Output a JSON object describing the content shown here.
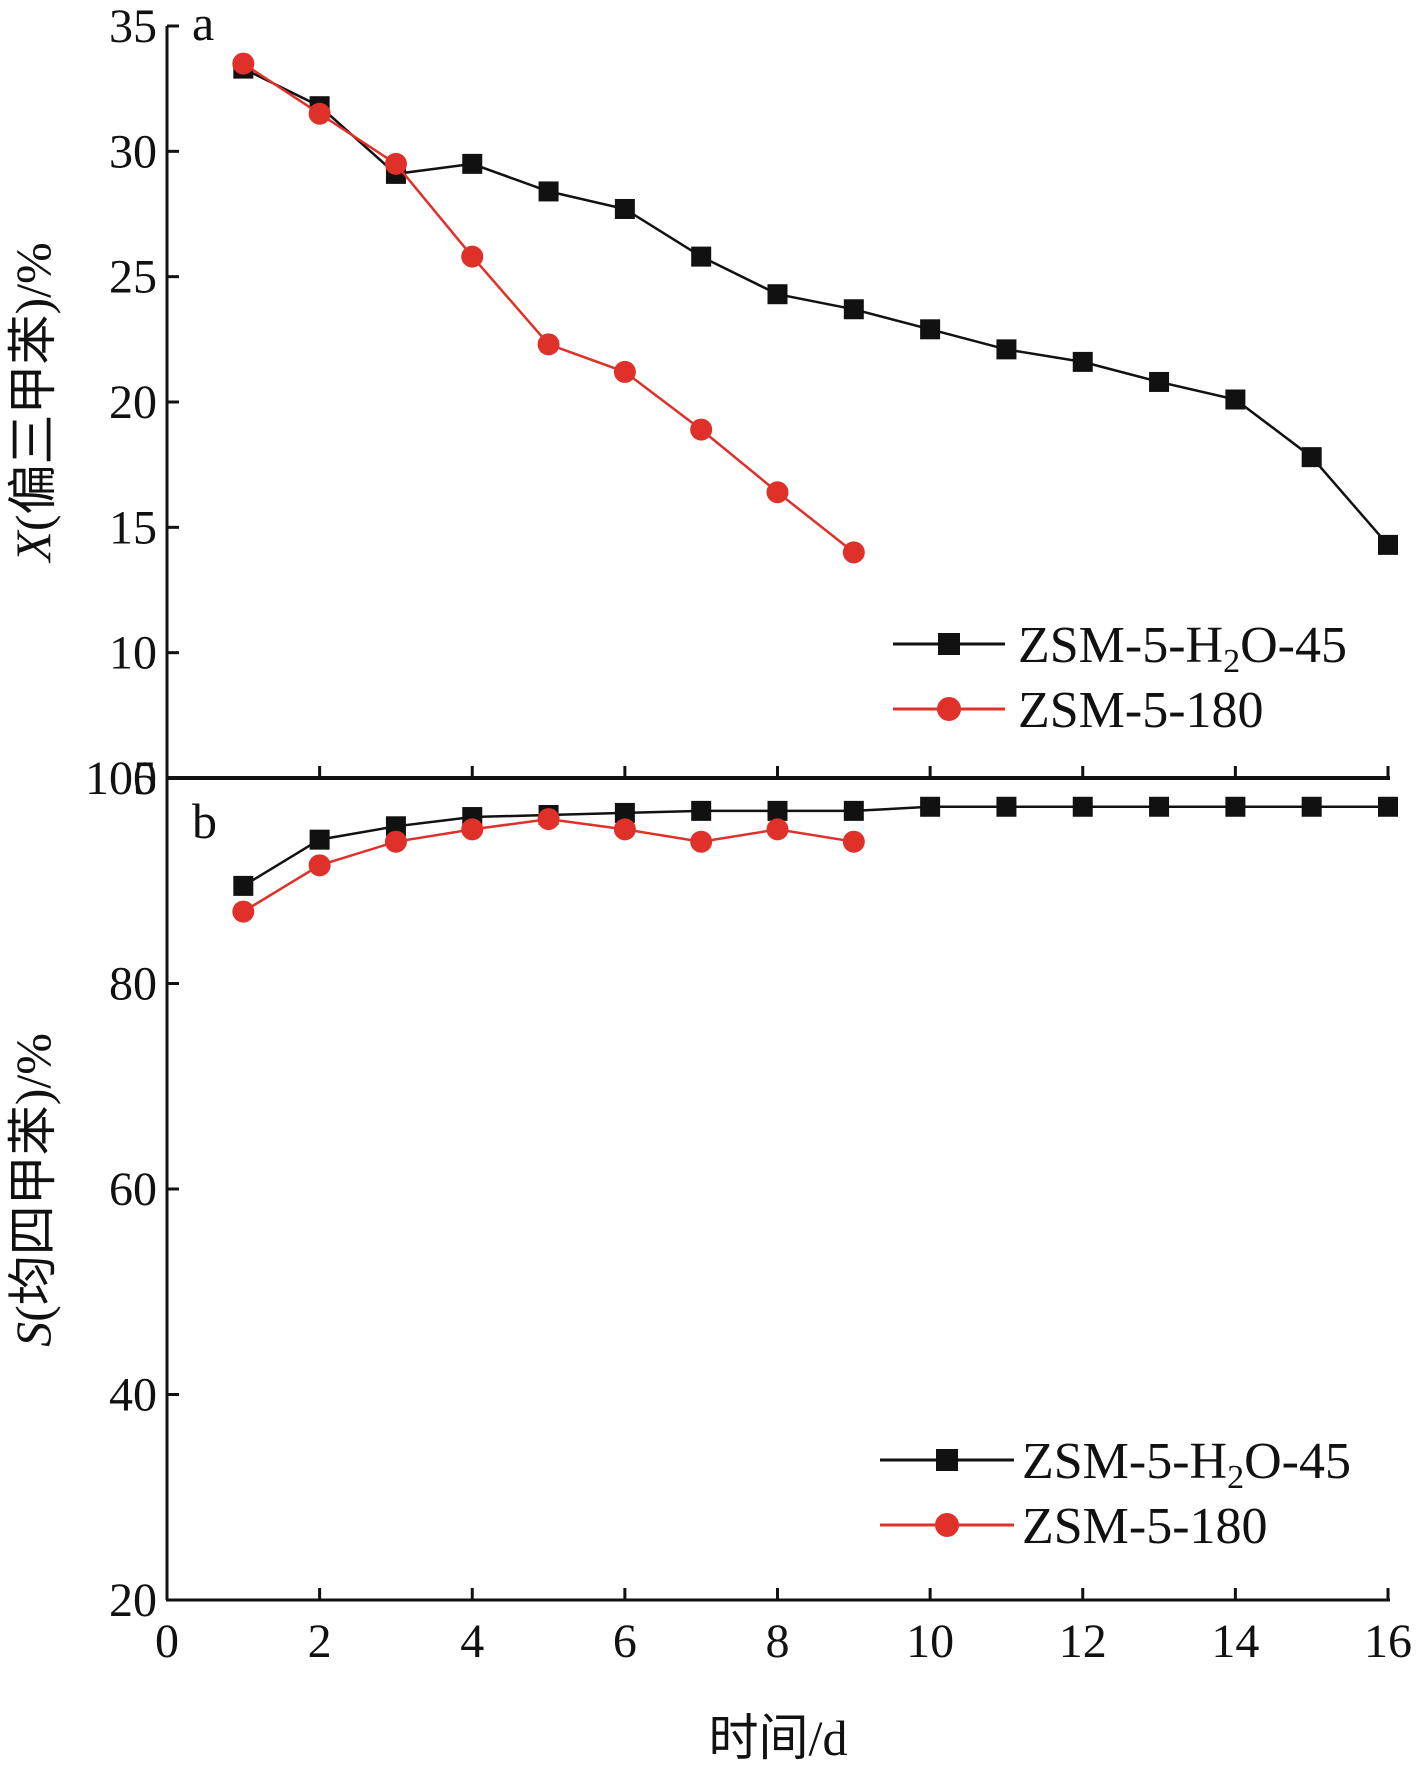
{
  "chart_data": [
    {
      "type": "line",
      "panel_label": "a",
      "ylabel_italic": "X",
      "ylabel_rest": "(偏三甲苯)/%",
      "xlim": [
        0,
        16
      ],
      "ylim": [
        5,
        35
      ],
      "yticks": [
        5,
        10,
        15,
        20,
        25,
        30,
        35
      ],
      "legend": "lower-right",
      "series": [
        {
          "name_parts": [
            "ZSM-5-H",
            "2",
            "O-45"
          ],
          "color": "#111111",
          "marker": "square",
          "x": [
            1,
            2,
            3,
            4,
            5,
            6,
            7,
            8,
            9,
            10,
            11,
            12,
            13,
            14,
            15,
            16
          ],
          "values": [
            33.3,
            31.8,
            29.1,
            29.5,
            28.4,
            27.7,
            25.8,
            24.3,
            23.7,
            22.9,
            22.1,
            21.6,
            20.8,
            20.1,
            17.8,
            14.3
          ]
        },
        {
          "name": "ZSM-5-180",
          "color": "#e0302a",
          "marker": "circle",
          "x": [
            1,
            2,
            3,
            4,
            5,
            6,
            7,
            8,
            9
          ],
          "values": [
            33.5,
            31.5,
            29.5,
            25.8,
            22.3,
            21.2,
            18.9,
            16.4,
            14.0
          ]
        }
      ]
    },
    {
      "type": "line",
      "panel_label": "b",
      "ylabel_italic": "S",
      "ylabel_rest": "(均四甲苯)/%",
      "xlabel": "时间/d",
      "xlim": [
        0,
        16
      ],
      "ylim": [
        20,
        100
      ],
      "xticks": [
        0,
        2,
        4,
        6,
        8,
        10,
        12,
        14,
        16
      ],
      "yticks": [
        20,
        40,
        60,
        80,
        100
      ],
      "legend": "lower-right",
      "series": [
        {
          "name_parts": [
            "ZSM-5-H",
            "2",
            "O-45"
          ],
          "color": "#111111",
          "marker": "square",
          "x": [
            1,
            2,
            3,
            4,
            5,
            6,
            7,
            8,
            9,
            10,
            11,
            12,
            13,
            14,
            15,
            16
          ],
          "values": [
            89.5,
            94.0,
            95.3,
            96.2,
            96.4,
            96.6,
            96.8,
            96.8,
            96.8,
            97.2,
            97.2,
            97.2,
            97.2,
            97.2,
            97.2,
            97.2
          ]
        },
        {
          "name": "ZSM-5-180",
          "color": "#e0302a",
          "marker": "circle",
          "x": [
            1,
            2,
            3,
            4,
            5,
            6,
            7,
            8,
            9
          ],
          "values": [
            87.0,
            91.5,
            93.8,
            95.0,
            96.0,
            95.0,
            93.8,
            95.0,
            93.8
          ]
        }
      ]
    }
  ]
}
